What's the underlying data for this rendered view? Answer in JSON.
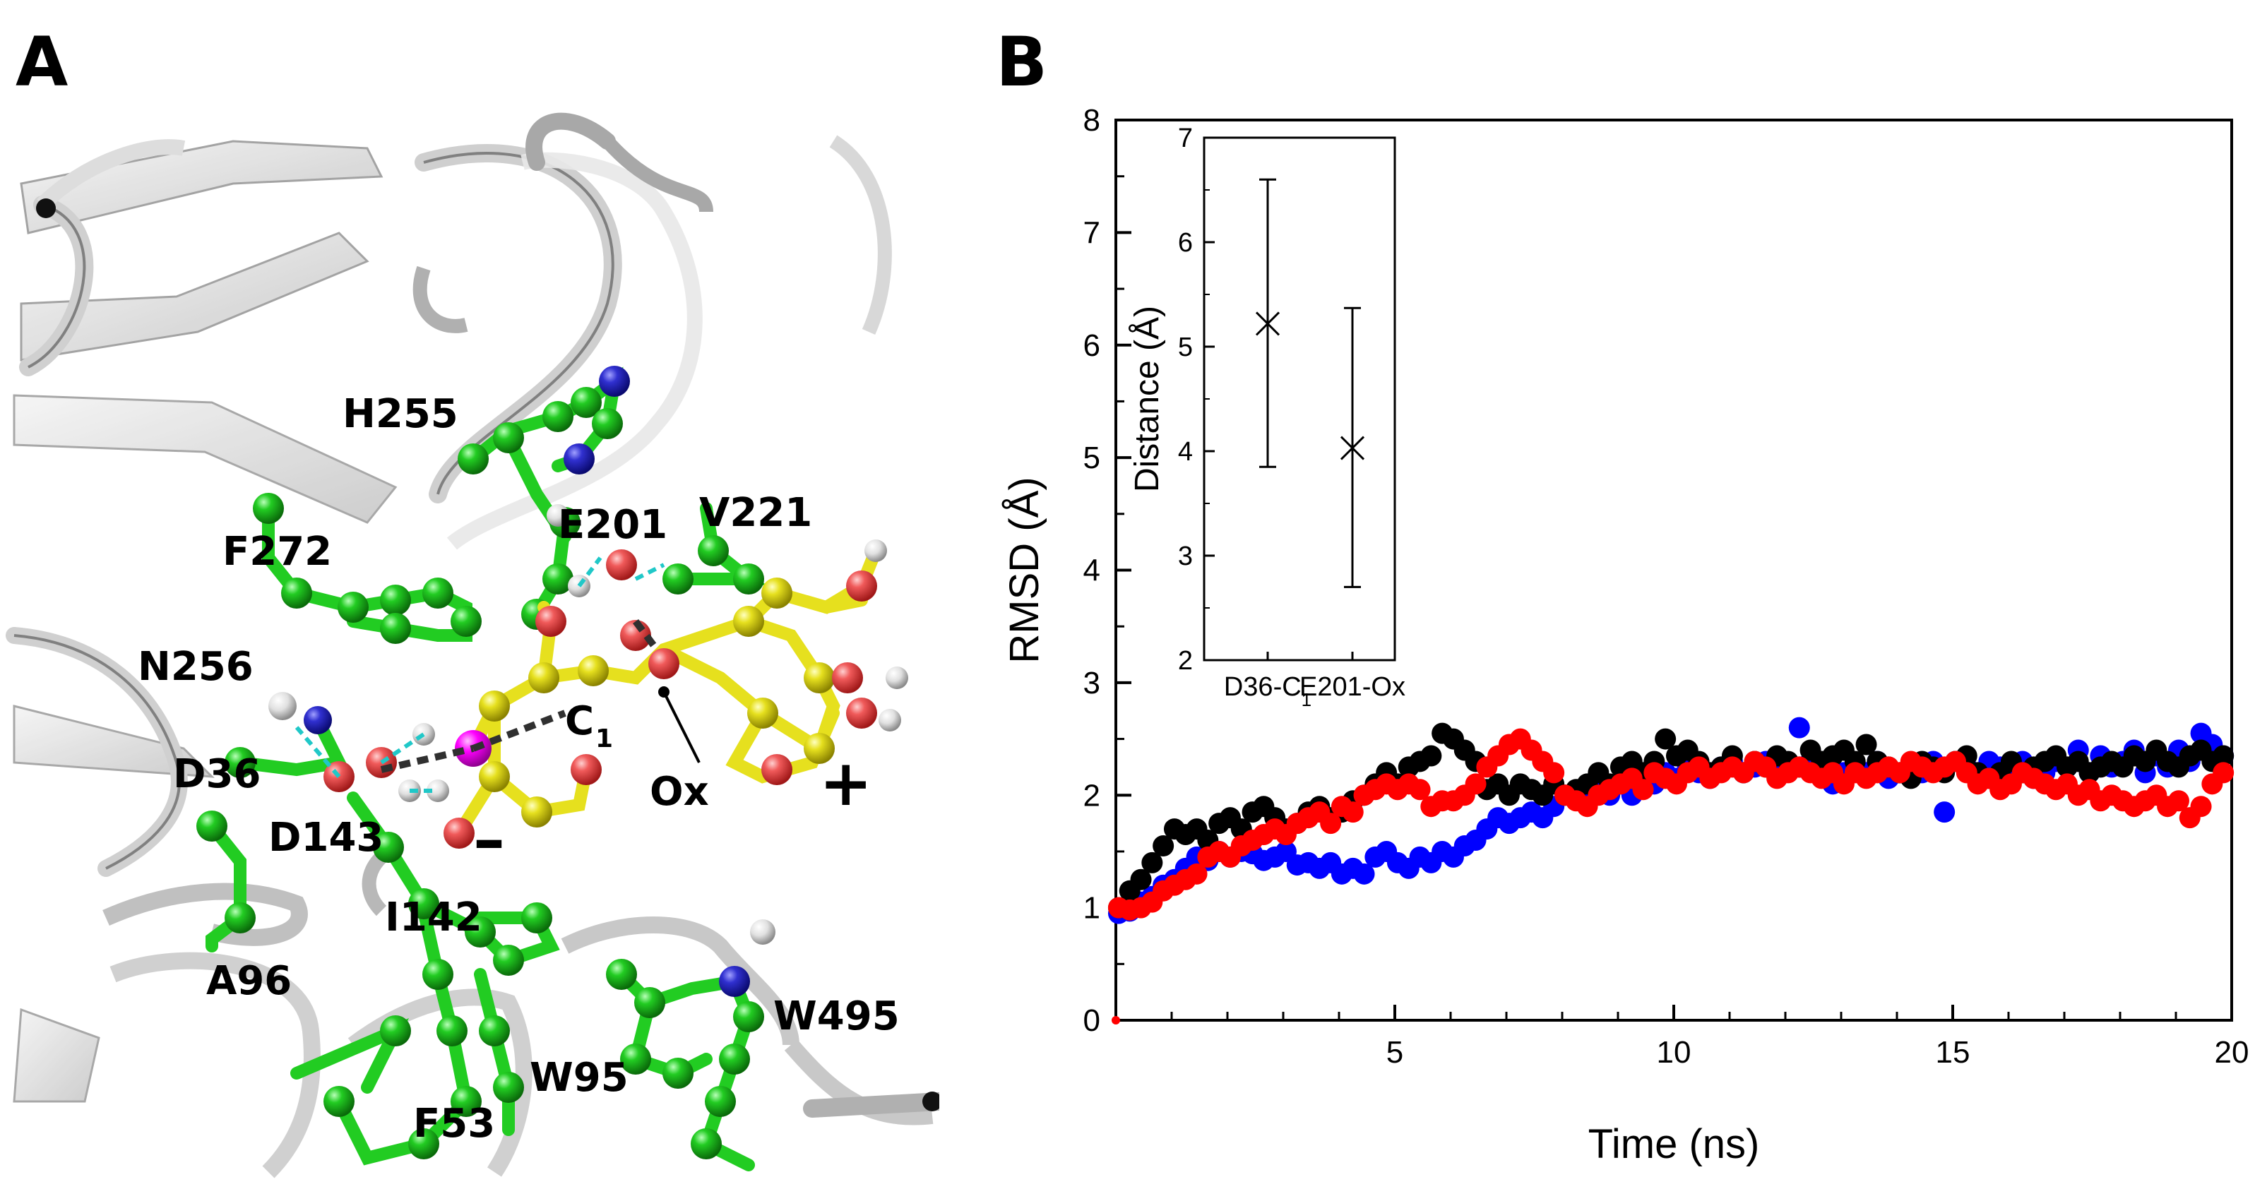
{
  "panel_a": {
    "letter": "A",
    "labels": {
      "h255": "H255",
      "e201": "E201",
      "v221": "V221",
      "f272": "F272",
      "n256": "N256",
      "d36": "D36",
      "d143": "D143",
      "c1": "C",
      "c1_sub": "1",
      "ox": "Ox",
      "plus": "+",
      "minus": "–",
      "i142": "I142",
      "a96": "A96",
      "w495": "W495",
      "w95": "W95",
      "f53": "F53"
    },
    "colors": {
      "carbon_residue": "#22cc22",
      "carbon_ligand": "#e6e01e",
      "oxygen": "#f05a5a",
      "nitrogen": "#3030d0",
      "hydrogen": "#e8e8e8",
      "highlight": "#ff00ff",
      "hbond": "#20c8c8",
      "distance": "#303030",
      "cartoon": "#c8c8c8"
    }
  },
  "panel_b": {
    "letter": "B",
    "chart_data": [
      {
        "type": "scatter",
        "xlabel": "Time (ns)",
        "ylabel": "RMSD (Å)",
        "xlim": [
          0,
          20
        ],
        "ylim": [
          0,
          8
        ],
        "xticks": [
          "5",
          "10",
          "15",
          "20"
        ],
        "yticks": [
          "0",
          "1",
          "2",
          "3",
          "4",
          "5",
          "6",
          "7",
          "8"
        ],
        "series": [
          {
            "color": "#0000ff",
            "x": [
              0.05,
              0.25,
              0.45,
              0.65,
              0.85,
              1.05,
              1.25,
              1.45,
              1.65,
              1.85,
              2.05,
              2.25,
              2.45,
              2.65,
              2.85,
              3.05,
              3.25,
              3.45,
              3.65,
              3.85,
              4.05,
              4.25,
              4.45,
              4.65,
              4.85,
              5.05,
              5.25,
              5.45,
              5.65,
              5.85,
              6.05,
              6.25,
              6.45,
              6.65,
              6.85,
              7.05,
              7.25,
              7.45,
              7.65,
              7.85,
              8.05,
              8.25,
              8.45,
              8.65,
              8.85,
              9.05,
              9.25,
              9.45,
              9.65,
              9.85,
              10.05,
              10.25,
              10.45,
              10.65,
              10.85,
              11.05,
              11.25,
              11.45,
              11.65,
              11.85,
              12.05,
              12.25,
              12.45,
              12.65,
              12.85,
              13.05,
              13.25,
              13.45,
              13.65,
              13.85,
              14.05,
              14.25,
              14.45,
              14.65,
              14.85,
              15.05,
              15.25,
              15.45,
              15.65,
              15.85,
              16.05,
              16.25,
              16.45,
              16.65,
              16.85,
              17.05,
              17.25,
              17.45,
              17.65,
              17.85,
              18.05,
              18.25,
              18.45,
              18.65,
              18.85,
              19.05,
              19.25,
              19.45,
              19.65,
              19.85
            ],
            "y": [
              0.95,
              0.97,
              1.05,
              1.1,
              1.2,
              1.25,
              1.35,
              1.45,
              1.42,
              1.5,
              1.45,
              1.5,
              1.48,
              1.42,
              1.45,
              1.5,
              1.38,
              1.4,
              1.35,
              1.4,
              1.3,
              1.35,
              1.3,
              1.45,
              1.5,
              1.4,
              1.35,
              1.45,
              1.4,
              1.5,
              1.45,
              1.55,
              1.6,
              1.7,
              1.8,
              1.75,
              1.8,
              1.85,
              1.8,
              1.9,
              2.0,
              2.0,
              1.95,
              2.05,
              2.0,
              2.1,
              2.0,
              2.15,
              2.1,
              2.2,
              2.15,
              2.25,
              2.2,
              2.15,
              2.25,
              2.3,
              2.2,
              2.25,
              2.3,
              2.2,
              2.25,
              2.6,
              2.3,
              2.2,
              2.1,
              2.2,
              2.25,
              2.2,
              2.3,
              2.15,
              2.2,
              2.25,
              2.2,
              2.3,
              1.85,
              2.3,
              2.25,
              2.2,
              2.3,
              2.25,
              2.2,
              2.3,
              2.15,
              2.2,
              2.3,
              2.25,
              2.4,
              2.2,
              2.35,
              2.25,
              2.3,
              2.4,
              2.2,
              2.35,
              2.25,
              2.4,
              2.3,
              2.55,
              2.45,
              2.35
            ]
          },
          {
            "color": "#000000",
            "x": [
              0.05,
              0.25,
              0.45,
              0.65,
              0.85,
              1.05,
              1.25,
              1.45,
              1.65,
              1.85,
              2.05,
              2.25,
              2.45,
              2.65,
              2.85,
              3.05,
              3.25,
              3.45,
              3.65,
              3.85,
              4.05,
              4.25,
              4.45,
              4.65,
              4.85,
              5.05,
              5.25,
              5.45,
              5.65,
              5.85,
              6.05,
              6.25,
              6.45,
              6.65,
              6.85,
              7.05,
              7.25,
              7.45,
              7.65,
              7.85,
              8.05,
              8.25,
              8.45,
              8.65,
              8.85,
              9.05,
              9.25,
              9.45,
              9.65,
              9.85,
              10.05,
              10.25,
              10.45,
              10.65,
              10.85,
              11.05,
              11.25,
              11.45,
              11.65,
              11.85,
              12.05,
              12.25,
              12.45,
              12.65,
              12.85,
              13.05,
              13.25,
              13.45,
              13.65,
              13.85,
              14.05,
              14.25,
              14.45,
              14.65,
              14.85,
              15.05,
              15.25,
              15.45,
              15.65,
              15.85,
              16.05,
              16.25,
              16.45,
              16.65,
              16.85,
              17.05,
              17.25,
              17.45,
              17.65,
              17.85,
              18.05,
              18.25,
              18.45,
              18.65,
              18.85,
              19.05,
              19.25,
              19.45,
              19.65,
              19.85
            ],
            "y": [
              1.0,
              1.15,
              1.25,
              1.4,
              1.55,
              1.7,
              1.65,
              1.7,
              1.6,
              1.75,
              1.8,
              1.7,
              1.85,
              1.9,
              1.8,
              1.7,
              1.75,
              1.85,
              1.9,
              1.8,
              1.85,
              1.95,
              2.0,
              2.1,
              2.2,
              2.1,
              2.25,
              2.3,
              2.35,
              2.55,
              2.5,
              2.4,
              2.3,
              2.05,
              2.1,
              2.0,
              2.1,
              2.05,
              2.0,
              2.1,
              2.0,
              2.05,
              2.1,
              2.2,
              2.1,
              2.25,
              2.3,
              2.2,
              2.3,
              2.5,
              2.35,
              2.4,
              2.3,
              2.2,
              2.25,
              2.35,
              2.2,
              2.3,
              2.25,
              2.35,
              2.3,
              2.25,
              2.4,
              2.3,
              2.35,
              2.4,
              2.3,
              2.45,
              2.3,
              2.25,
              2.2,
              2.15,
              2.3,
              2.25,
              2.2,
              2.3,
              2.35,
              2.2,
              2.15,
              2.2,
              2.3,
              2.2,
              2.25,
              2.3,
              2.35,
              2.25,
              2.3,
              2.2,
              2.25,
              2.3,
              2.25,
              2.35,
              2.3,
              2.4,
              2.3,
              2.25,
              2.35,
              2.4,
              2.3,
              2.35
            ]
          },
          {
            "color": "#ff0000",
            "x": [
              0.05,
              0.25,
              0.45,
              0.65,
              0.85,
              1.05,
              1.25,
              1.45,
              1.65,
              1.85,
              2.05,
              2.25,
              2.45,
              2.65,
              2.85,
              3.05,
              3.25,
              3.45,
              3.65,
              3.85,
              4.05,
              4.25,
              4.45,
              4.65,
              4.85,
              5.05,
              5.25,
              5.45,
              5.65,
              5.85,
              6.05,
              6.25,
              6.45,
              6.65,
              6.85,
              7.05,
              7.25,
              7.45,
              7.65,
              7.85,
              8.05,
              8.25,
              8.45,
              8.65,
              8.85,
              9.05,
              9.25,
              9.45,
              9.65,
              9.85,
              10.05,
              10.25,
              10.45,
              10.65,
              10.85,
              11.05,
              11.25,
              11.45,
              11.65,
              11.85,
              12.05,
              12.25,
              12.45,
              12.65,
              12.85,
              13.05,
              13.25,
              13.45,
              13.65,
              13.85,
              14.05,
              14.25,
              14.45,
              14.65,
              14.85,
              15.05,
              15.25,
              15.45,
              15.65,
              15.85,
              16.05,
              16.25,
              16.45,
              16.65,
              16.85,
              17.05,
              17.25,
              17.45,
              17.65,
              17.85,
              18.05,
              18.25,
              18.45,
              18.65,
              18.85,
              19.05,
              19.25,
              19.45,
              19.65,
              19.85
            ],
            "y": [
              1.0,
              0.98,
              1.0,
              1.05,
              1.15,
              1.2,
              1.25,
              1.3,
              1.45,
              1.5,
              1.45,
              1.55,
              1.6,
              1.65,
              1.7,
              1.65,
              1.75,
              1.8,
              1.85,
              1.75,
              1.9,
              1.85,
              2.0,
              2.05,
              2.1,
              2.05,
              2.1,
              2.05,
              1.9,
              1.95,
              1.95,
              2.0,
              2.1,
              2.25,
              2.35,
              2.45,
              2.5,
              2.4,
              2.3,
              2.2,
              2.0,
              1.95,
              1.9,
              2.0,
              2.05,
              2.1,
              2.15,
              2.05,
              2.2,
              2.15,
              2.1,
              2.2,
              2.25,
              2.15,
              2.2,
              2.25,
              2.2,
              2.3,
              2.25,
              2.15,
              2.2,
              2.25,
              2.2,
              2.15,
              2.2,
              2.1,
              2.2,
              2.15,
              2.2,
              2.25,
              2.2,
              2.3,
              2.25,
              2.2,
              2.25,
              2.3,
              2.2,
              2.1,
              2.15,
              2.05,
              2.1,
              2.2,
              2.15,
              2.1,
              2.05,
              2.1,
              2.0,
              2.05,
              1.95,
              2.0,
              1.95,
              1.9,
              1.95,
              2.0,
              1.9,
              1.95,
              1.8,
              1.9,
              2.1,
              2.2
            ]
          }
        ]
      },
      {
        "type": "scatter",
        "ylabel": "Distance (Å)",
        "ylim": [
          2,
          7
        ],
        "yticks": [
          "2",
          "3",
          "4",
          "5",
          "6",
          "7"
        ],
        "categories": [
          "D36-C",
          "E201-Ox"
        ],
        "category_subscripts": [
          "1",
          ""
        ],
        "values": [
          5.22,
          4.03
        ],
        "error_low": [
          3.85,
          2.7
        ],
        "error_high": [
          6.6,
          5.37
        ],
        "marker": "x"
      }
    ]
  }
}
